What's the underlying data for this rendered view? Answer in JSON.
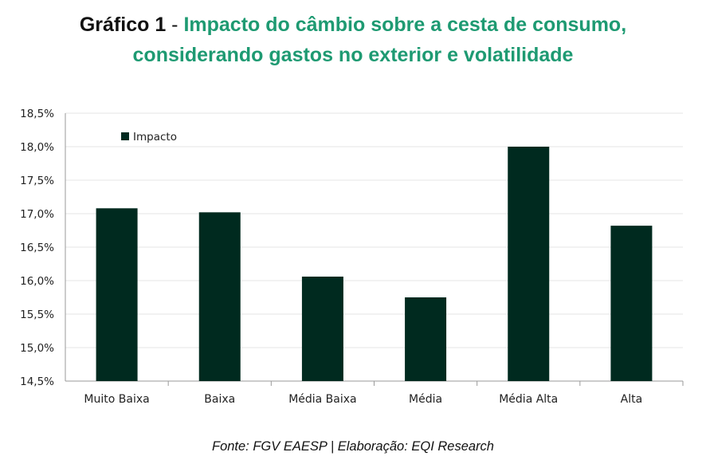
{
  "title": {
    "prefix": "Gráfico 1",
    "separator": "-",
    "line1": "Impacto do câmbio sobre a cesta de consumo,",
    "line2": "considerando gastos no exterior e volatilidade"
  },
  "source": "Fonte: FGV EAESP | Elaboração: EQI Research",
  "colors": {
    "title_accent": "#1e9a72",
    "bar": "#002a1f",
    "grid": "#e6e6e6"
  },
  "chart_data": {
    "type": "bar",
    "title": "Impacto do câmbio sobre a cesta de consumo, considerando gastos no exterior e volatilidade",
    "categories": [
      "Muito Baixa",
      "Baixa",
      "Média Baixa",
      "Média",
      "Média Alta",
      "Alta"
    ],
    "series": [
      {
        "name": "Impacto",
        "values": [
          17.08,
          17.02,
          16.06,
          15.75,
          18.0,
          16.82
        ]
      }
    ],
    "ylim": [
      14.5,
      18.5
    ],
    "yticks": [
      14.5,
      15.0,
      15.5,
      16.0,
      16.5,
      17.0,
      17.5,
      18.0,
      18.5
    ],
    "ytick_labels": [
      "14,5%",
      "15,0%",
      "15,5%",
      "16,0%",
      "16,5%",
      "17,0%",
      "17,5%",
      "18,0%",
      "18,5%"
    ],
    "xlabel": "",
    "ylabel": "",
    "grid": true,
    "legend": {
      "position": "top-left",
      "label": "Impacto"
    }
  }
}
